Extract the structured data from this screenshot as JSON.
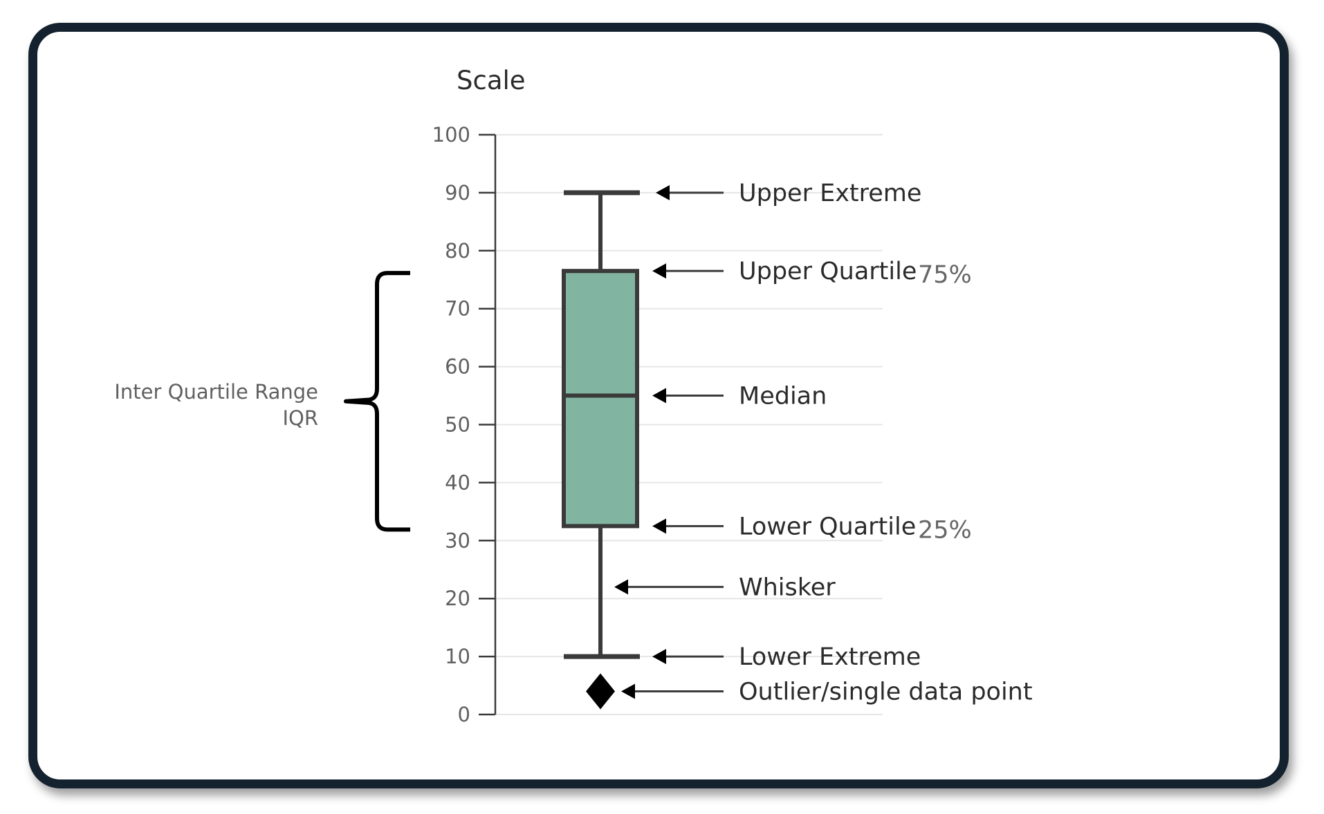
{
  "colors": {
    "frame": "#13222e",
    "box_fill": "#82b4a2",
    "stroke": "#3a3a3a",
    "grid": "#e6e6e6"
  },
  "chart_data": {
    "type": "box",
    "ylabel": "Scale",
    "ylim": [
      0,
      100
    ],
    "yticks": [
      "0",
      "10",
      "20",
      "30",
      "40",
      "50",
      "60",
      "70",
      "80",
      "90",
      "100"
    ],
    "grid": true,
    "box": {
      "lower_extreme": 10,
      "lower_quartile": 32.5,
      "median": 55,
      "upper_quartile": 76.5,
      "upper_extreme": 90,
      "outlier": 4
    },
    "annotations": [
      {
        "id": "upper-extreme",
        "text": "Upper Extreme",
        "value": 90,
        "percent": ""
      },
      {
        "id": "upper-quartile",
        "text": "Upper Quartile",
        "value": 76.5,
        "percent": "75%"
      },
      {
        "id": "median",
        "text": "Median",
        "value": 55,
        "percent": ""
      },
      {
        "id": "lower-quartile",
        "text": "Lower Quartile",
        "value": 32.5,
        "percent": "25%"
      },
      {
        "id": "whisker",
        "text": "Whisker",
        "value": 22,
        "percent": ""
      },
      {
        "id": "lower-extreme",
        "text": "Lower Extreme",
        "value": 10,
        "percent": ""
      },
      {
        "id": "outlier",
        "text": "Outlier/single data point",
        "value": 4,
        "percent": ""
      }
    ],
    "iqr_label": {
      "line1": "Inter Quartile Range",
      "line2": "IQR"
    }
  }
}
